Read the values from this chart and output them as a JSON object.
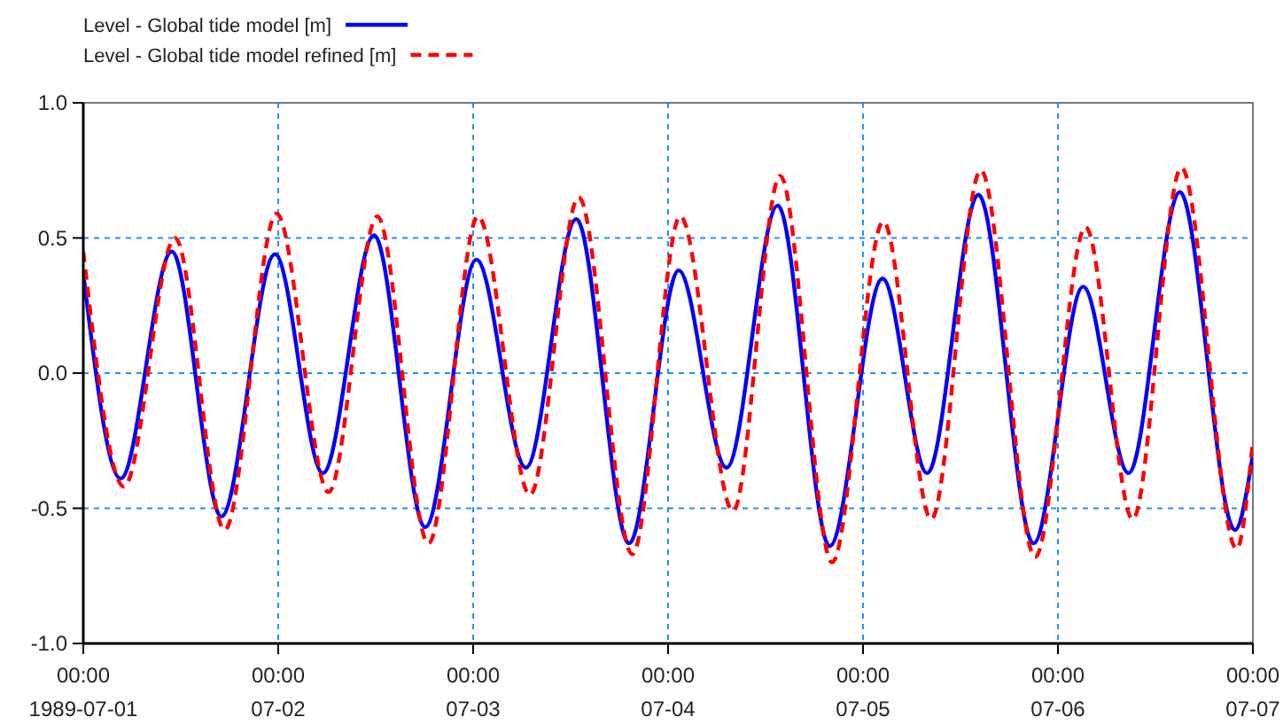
{
  "chart_data": {
    "type": "line",
    "ylim": [
      -1.0,
      1.0
    ],
    "yticks": [
      {
        "value": -1.0,
        "label": "-1.0"
      },
      {
        "value": -0.5,
        "label": "-0.5"
      },
      {
        "value": 0,
        "label": "0.0"
      },
      {
        "value": 0.5,
        "label": "0.5"
      },
      {
        "value": 1.0,
        "label": "1.0"
      }
    ],
    "xlim": [
      "1989-07-01T00:00",
      "1989-07-07T00:00"
    ],
    "xticks": [
      {
        "value": "1989-07-01T00:00",
        "label": "00:00\n1989-07-01"
      },
      {
        "value": "1989-07-02T00:00",
        "label": "00:00\n07-02"
      },
      {
        "value": "1989-07-03T00:00",
        "label": "00:00\n07-03"
      },
      {
        "value": "1989-07-04T00:00",
        "label": "00:00\n07-04"
      },
      {
        "value": "1989-07-05T00:00",
        "label": "00:00\n07-05"
      },
      {
        "value": "1989-07-06T00:00",
        "label": "00:00\n07-06"
      },
      {
        "value": "1989-07-07T00:00",
        "label": "00:00\n07-07"
      }
    ],
    "grid": true,
    "legend": "top left",
    "series": [
      {
        "name": "Level - Global tide model [m]",
        "color": "#0000ff",
        "line_style": "solid",
        "x": [
          "1989-07-01T00:00",
          "1989-07-01T04:36",
          "1989-07-01T10:54",
          "1989-07-01T17:00",
          "1989-07-01T23:36",
          "1989-07-02T05:30",
          "1989-07-02T11:48",
          "1989-07-02T18:06",
          "1989-07-03T00:24",
          "1989-07-03T06:30",
          "1989-07-03T12:42",
          "1989-07-03T19:12",
          "1989-07-04T01:18",
          "1989-07-04T07:12",
          "1989-07-04T13:30",
          "1989-07-04T19:54",
          "1989-07-05T02:24",
          "1989-07-05T07:54",
          "1989-07-05T14:12",
          "1989-07-05T21:00",
          "1989-07-06T03:06",
          "1989-07-06T08:42",
          "1989-07-06T15:00",
          "1989-07-06T21:48",
          "1989-07-07T00:00"
        ],
        "values": [
          0.37,
          -0.39,
          0.45,
          -0.53,
          0.44,
          -0.37,
          0.51,
          -0.57,
          0.42,
          -0.35,
          0.57,
          -0.63,
          0.38,
          -0.35,
          0.62,
          -0.64,
          0.35,
          -0.37,
          0.66,
          -0.63,
          0.32,
          -0.37,
          0.67,
          -0.58,
          -0.3
        ]
      },
      {
        "name": "Level - Global tide model refined [m]",
        "color": "#ff0000",
        "line_style": "dashed",
        "x": [
          "1989-07-01T00:00",
          "1989-07-01T05:00",
          "1989-07-01T11:18",
          "1989-07-01T17:24",
          "1989-07-01T23:48",
          "1989-07-02T06:12",
          "1989-07-02T12:12",
          "1989-07-02T18:30",
          "1989-07-03T00:36",
          "1989-07-03T07:00",
          "1989-07-03T13:00",
          "1989-07-03T19:36",
          "1989-07-04T01:30",
          "1989-07-04T08:00",
          "1989-07-04T13:48",
          "1989-07-04T20:12",
          "1989-07-05T02:30",
          "1989-07-05T08:24",
          "1989-07-05T14:30",
          "1989-07-05T21:12",
          "1989-07-06T03:24",
          "1989-07-06T09:12",
          "1989-07-06T15:12",
          "1989-07-06T22:00",
          "1989-07-07T00:00"
        ],
        "values": [
          0.45,
          -0.42,
          0.5,
          -0.58,
          0.59,
          -0.44,
          0.58,
          -0.63,
          0.58,
          -0.45,
          0.65,
          -0.67,
          0.58,
          -0.51,
          0.73,
          -0.7,
          0.56,
          -0.54,
          0.75,
          -0.68,
          0.54,
          -0.54,
          0.76,
          -0.65,
          -0.25
        ]
      }
    ]
  }
}
